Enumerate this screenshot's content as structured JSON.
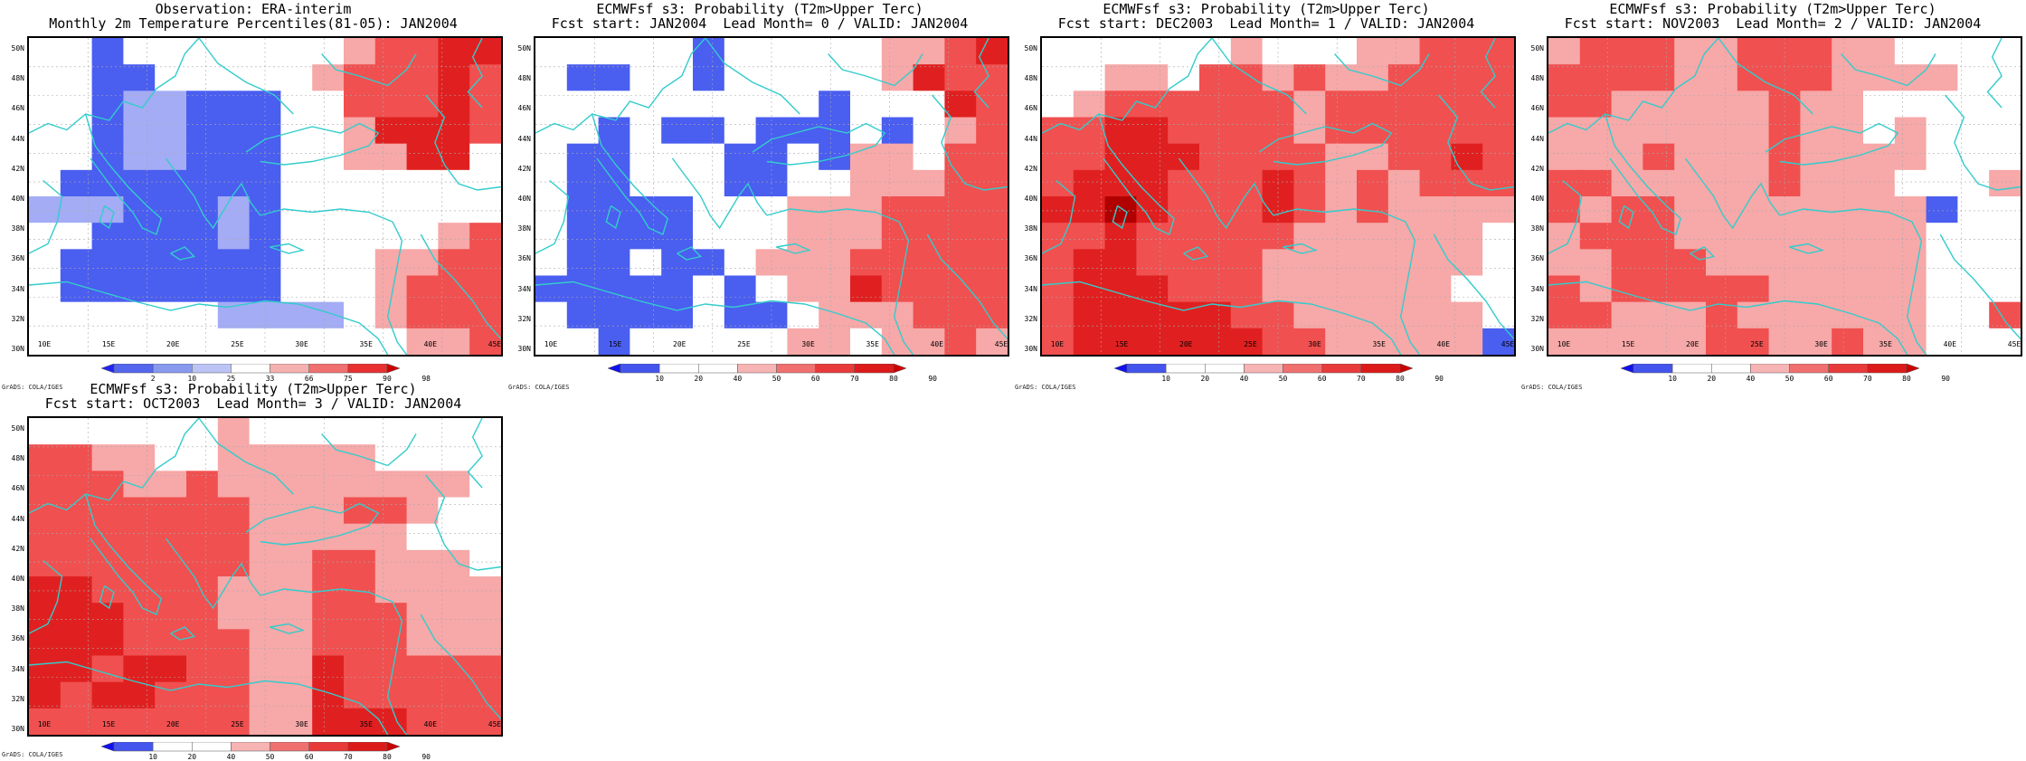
{
  "figure": {
    "credit": "GrADS: COLA/IGES",
    "x_ticks": [
      "10E",
      "15E",
      "20E",
      "25E",
      "30E",
      "35E",
      "40E",
      "45E"
    ],
    "y_ticks": [
      "50N",
      "48N",
      "46N",
      "44N",
      "42N",
      "40N",
      "38N",
      "36N",
      "34N",
      "32N",
      "30N"
    ],
    "colors": {
      "coastline": "#33cccc",
      "grid": "#aaaaaa",
      "frame": "#000000"
    }
  },
  "panels": [
    {
      "id": "obs",
      "title1": "Observation: ERA-interim",
      "title2": "Monthly 2m Temperature Percentiles(81-05): JAN2004",
      "legend_labels": [
        "2",
        "10",
        "25",
        "33",
        "66",
        "75",
        "90",
        "98"
      ],
      "legend_colors": [
        "#2222ee",
        "#5566ee",
        "#8899ee",
        "#bbc4f5",
        "#ffffff",
        "#f5b0b0",
        "#f07070",
        "#e83030",
        "#cc0000"
      ]
    },
    {
      "id": "lead0",
      "title1": "ECMWFsf s3: Probability (T2m>Upper Terc)",
      "title2": "Fcst start: JAN2004  Lead Month= 0 / VALID: JAN2004",
      "legend_labels": [
        "10",
        "20",
        "40",
        "50",
        "60",
        "70",
        "80",
        "90"
      ],
      "legend_colors": [
        "#1111ee",
        "#4455ee",
        "#ffffff",
        "#ffffff",
        "#f7b4b4",
        "#f07070",
        "#e83a3a",
        "#dd1a1a",
        "#cc0000"
      ]
    },
    {
      "id": "lead1",
      "title1": "ECMWFsf s3: Probability (T2m>Upper Terc)",
      "title2": "Fcst start: DEC2003  Lead Month= 1 / VALID: JAN2004",
      "legend_labels": [
        "10",
        "20",
        "40",
        "50",
        "60",
        "70",
        "80",
        "90"
      ],
      "legend_colors": [
        "#1111ee",
        "#4455ee",
        "#ffffff",
        "#ffffff",
        "#f7b4b4",
        "#f07070",
        "#e83a3a",
        "#dd1a1a",
        "#cc0000"
      ]
    },
    {
      "id": "lead2",
      "title1": "ECMWFsf s3: Probability (T2m>Upper Terc)",
      "title2": "Fcst start: NOV2003  Lead Month= 2 / VALID: JAN2004",
      "legend_labels": [
        "10",
        "20",
        "40",
        "50",
        "60",
        "70",
        "80",
        "90"
      ],
      "legend_colors": [
        "#1111ee",
        "#4455ee",
        "#ffffff",
        "#ffffff",
        "#f7b4b4",
        "#f07070",
        "#e83a3a",
        "#dd1a1a",
        "#cc0000"
      ]
    },
    {
      "id": "lead3",
      "title1": "ECMWFsf s3: Probability (T2m>Upper Terc)",
      "title2": "Fcst start: OCT2003  Lead Month= 3 / VALID: JAN2004",
      "legend_labels": [
        "10",
        "20",
        "40",
        "50",
        "60",
        "70",
        "80",
        "90"
      ],
      "legend_colors": [
        "#1111ee",
        "#4455ee",
        "#ffffff",
        "#ffffff",
        "#f7b4b4",
        "#f07070",
        "#e83a3a",
        "#dd1a1a",
        "#cc0000"
      ]
    }
  ],
  "grids": {
    "obs": [
      "00B0000000PRRQQ",
      "00BB00000PRRRQR",
      "00BLLBBB00RRRQR",
      "00BLLBBB00PQQQR",
      "00BLLBBB00PPQQ0",
      "0BBBBBBB0000000",
      "LLLBBBLB0000000",
      "00BBBBLB00000PR",
      "0BBBBBBB000PPRR",
      "0BBBBBBB000PRRR",
      "000000LLLL0PRRR",
      "000000000000PPR"
    ],
    "lead0": [
      "00000B00000PPRQ",
      "0BB00B00000PQRR",
      "000000000B000QR",
      "00B0BB0BBB0B0PR",
      "0BB000BB0BPP0RR",
      "0BB000BB00PPPRR",
      "0BBBB000PPPRRRR",
      "0BBBB000PPPRRRR",
      "0BB0BB0PPPRRRRR",
      "BBBBB0B0PPQRRRR",
      "0BBBB0BB0PPPRRR",
      "00B00000PP0PPRP"
    ],
    "lead1": [
      "000000P000PPRRR",
      "00PP0RRPRPPRRRR",
      "0PRRRRRRPRRRRRR",
      "RRQQRRRRPRRRRRR",
      "RRQQQRRRRPPRRQR",
      "RQQQRRRQRPRPRRR",
      "QQSQRRRQRPRPPPP",
      "RRQRRRRRPPPPPP0",
      "RQQRRRRPPPPPPP0",
      "RQQQRRRPPPPPP00",
      "RQQQQQRRPPPPPP0",
      "RQQQQQQRRPPPPPB"
    ],
    "lead2": [
      "PRRRPPRRRPP0000",
      "RRRRPPRRRPPPP00",
      "RRPPPPPRPP00000",
      "PPPPPPPRPP0P000",
      "PPPRPPPRPPPP000",
      "RRPPPPPRPPP000P",
      "RPRRPPPPPPPPB00",
      "PRRRPPPPPPPP000",
      "PPRRRPPPPPPP000",
      "RPRRRRRPPPPP000",
      "RRPPPRPPPPPP00R",
      "PPPPPRRPPRPP000"
    ],
    "lead3": [
      "000000P00000000",
      "RRPP00PPPPP0000",
      "RRRPPRPPPPPPPP0",
      "RRRRRRRPPPRRP00",
      "RRRRRRRPPPPP000",
      "RRRRRRRPPRRPPP0",
      "QQRRRRPPPRRPPPP",
      "QQQRRRPPPRRRPPP",
      "QQQRRRRPPRRRPPP",
      "QQRQQRRPPQRRRRR",
      "QRQQRRRPPQRRRRR",
      "RRRRRRRPPQQQRRR"
    ]
  }
}
